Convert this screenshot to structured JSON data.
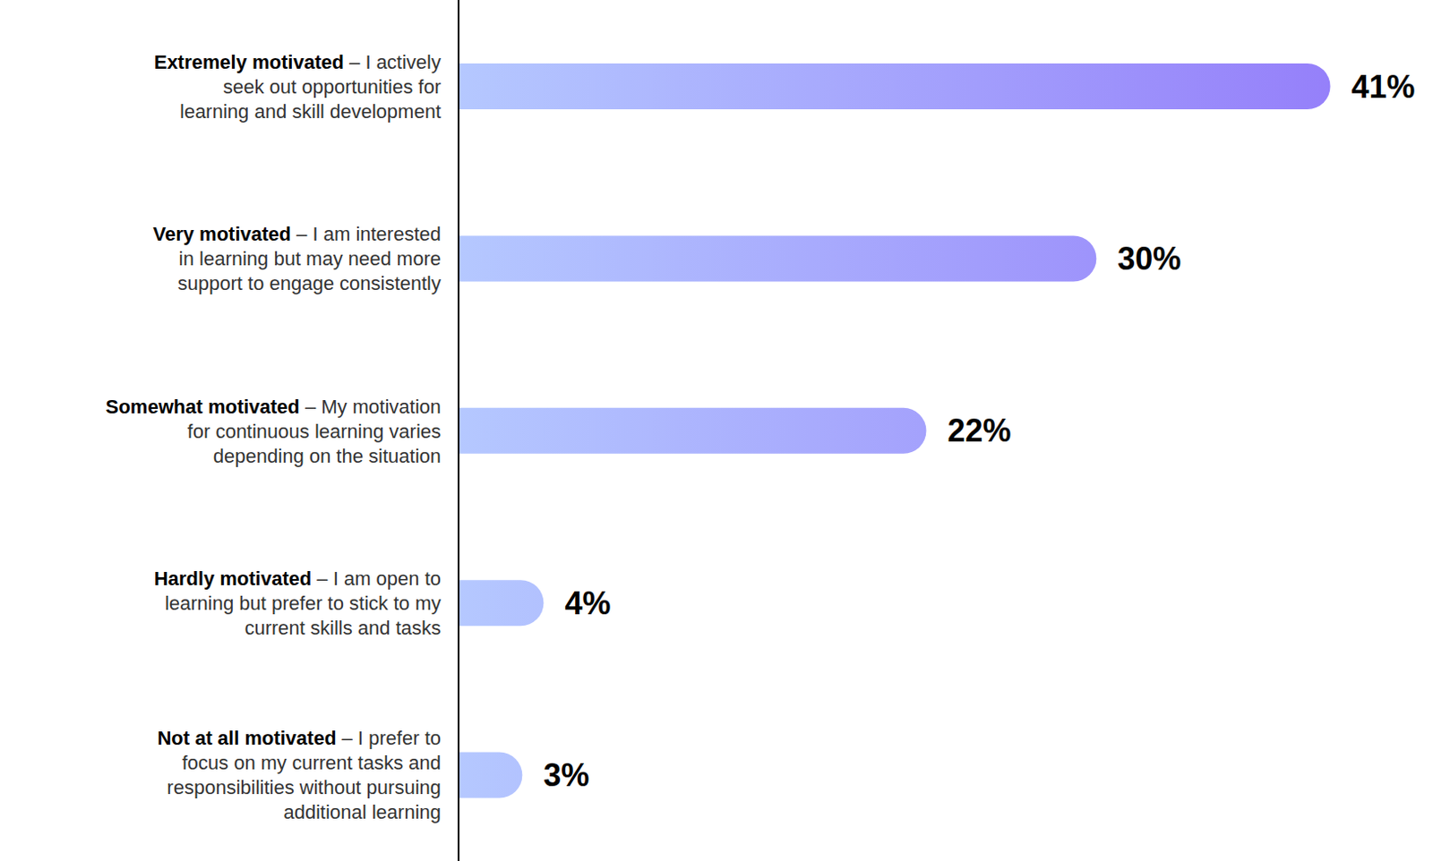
{
  "chart_data": {
    "type": "bar",
    "orientation": "horizontal",
    "categories": [
      "Extremely motivated – I actively seek out opportunities for learning and skill development",
      "Very motivated – I am interested in learning but may need more support to engage consistently",
      "Somewhat motivated – My motivation for continuous learning varies depending on the situation",
      "Hardly motivated – I am open to learning but prefer to stick to my current skills and tasks",
      "Not at all motivated – I prefer to focus on my current tasks and responsibilities without pursuing additional learning"
    ],
    "values": [
      41,
      30,
      22,
      4,
      3
    ],
    "value_labels": [
      "41%",
      "30%",
      "22%",
      "4%",
      "3%"
    ],
    "color": "#9580fa",
    "xlim": [
      0,
      45
    ],
    "data_labels": true,
    "tick_labels": "y",
    "grid": false
  }
}
